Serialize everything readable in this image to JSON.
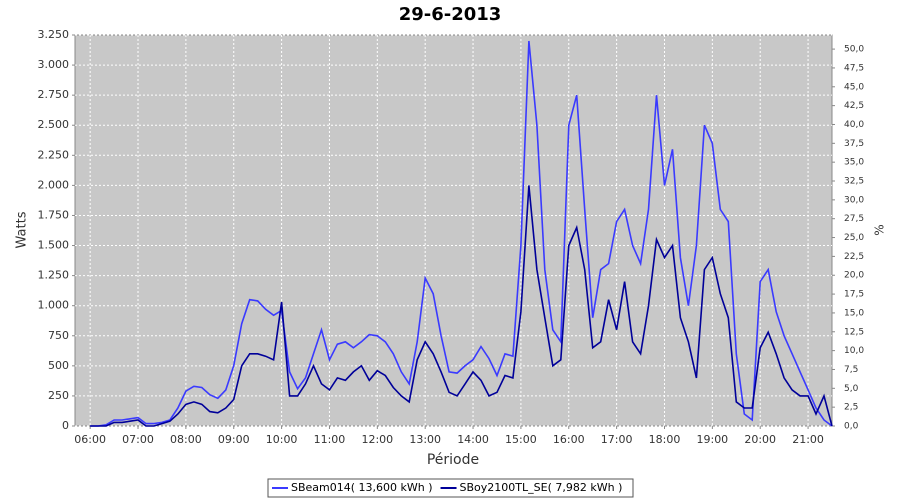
{
  "chart_data": {
    "type": "line",
    "title": "29-6-2013",
    "x_label": "Période",
    "y_label": "Watts",
    "y2_label": "%",
    "x": [
      "06:00",
      "06:10",
      "06:20",
      "06:30",
      "06:40",
      "06:50",
      "07:00",
      "07:10",
      "07:20",
      "07:30",
      "07:40",
      "07:50",
      "08:00",
      "08:10",
      "08:20",
      "08:30",
      "08:40",
      "08:50",
      "09:00",
      "09:10",
      "09:20",
      "09:30",
      "09:40",
      "09:50",
      "10:00",
      "10:10",
      "10:20",
      "10:30",
      "10:40",
      "10:50",
      "11:00",
      "11:10",
      "11:20",
      "11:30",
      "11:40",
      "11:50",
      "12:00",
      "12:10",
      "12:20",
      "12:30",
      "12:40",
      "12:50",
      "13:00",
      "13:10",
      "13:20",
      "13:30",
      "13:40",
      "13:50",
      "14:00",
      "14:10",
      "14:20",
      "14:30",
      "14:40",
      "14:50",
      "15:00",
      "15:10",
      "15:20",
      "15:30",
      "15:40",
      "15:50",
      "16:00",
      "16:10",
      "16:20",
      "16:30",
      "16:40",
      "16:50",
      "17:00",
      "17:10",
      "17:20",
      "17:30",
      "17:40",
      "17:50",
      "18:00",
      "18:10",
      "18:20",
      "18:30",
      "18:40",
      "18:50",
      "19:00",
      "19:10",
      "19:20",
      "19:30",
      "19:40",
      "19:50",
      "20:00",
      "20:10",
      "20:20",
      "20:30",
      "20:40",
      "20:50",
      "21:00",
      "21:10",
      "21:20",
      "21:30"
    ],
    "series": [
      {
        "name": "SBeam014( 13,600 kWh )",
        "color": "#3a3aff",
        "values": [
          0,
          0,
          10,
          50,
          50,
          60,
          70,
          20,
          20,
          30,
          50,
          150,
          290,
          330,
          320,
          260,
          230,
          300,
          500,
          850,
          1050,
          1040,
          970,
          920,
          960,
          450,
          310,
          400,
          600,
          800,
          550,
          680,
          700,
          650,
          700,
          760,
          750,
          700,
          600,
          450,
          350,
          700,
          1230,
          1100,
          750,
          450,
          440,
          500,
          550,
          660,
          560,
          420,
          600,
          580,
          1500,
          3200,
          2500,
          1300,
          800,
          700,
          2500,
          2750,
          1800,
          900,
          1300,
          1350,
          1700,
          1800,
          1500,
          1350,
          1800,
          2750,
          2000,
          2300,
          1400,
          1000,
          1500,
          2500,
          2350,
          1800,
          1700,
          600,
          100,
          50,
          1200,
          1300,
          950,
          750,
          600,
          450,
          300,
          150,
          50,
          0
        ]
      },
      {
        "name": "SBoy2100TL_SE( 7,982 kWh )",
        "color": "#000099",
        "values": [
          0,
          0,
          0,
          30,
          30,
          40,
          50,
          0,
          0,
          20,
          40,
          100,
          180,
          200,
          180,
          120,
          110,
          150,
          220,
          500,
          600,
          600,
          580,
          550,
          1030,
          250,
          250,
          350,
          500,
          350,
          300,
          400,
          380,
          450,
          500,
          380,
          460,
          420,
          320,
          250,
          200,
          550,
          700,
          600,
          450,
          280,
          250,
          350,
          450,
          380,
          250,
          280,
          420,
          400,
          950,
          2000,
          1300,
          900,
          500,
          550,
          1500,
          1650,
          1300,
          650,
          700,
          1050,
          800,
          1200,
          700,
          600,
          1000,
          1550,
          1400,
          1500,
          900,
          700,
          400,
          1300,
          1400,
          1100,
          900,
          200,
          150,
          150,
          650,
          780,
          600,
          400,
          300,
          250,
          250,
          100,
          250,
          0
        ]
      }
    ],
    "xlim": [
      "05:41",
      "21:30"
    ],
    "xticks": [
      "06:00",
      "07:00",
      "08:00",
      "09:00",
      "10:00",
      "11:00",
      "12:00",
      "13:00",
      "14:00",
      "15:00",
      "16:00",
      "17:00",
      "18:00",
      "19:00",
      "20:00",
      "21:00"
    ],
    "ylim": [
      0,
      3250
    ],
    "yticks": [
      0,
      250,
      500,
      750,
      {
        "value": 1000,
        "label": "1.000"
      },
      {
        "value": 1250,
        "label": "1.250"
      },
      {
        "value": 1500,
        "label": "1.500"
      },
      {
        "value": 1750,
        "label": "1.750"
      },
      {
        "value": 2000,
        "label": "2.000"
      },
      {
        "value": 2250,
        "label": "2.250"
      },
      {
        "value": 2500,
        "label": "2.500"
      },
      {
        "value": 2750,
        "label": "2.750"
      },
      {
        "value": 3000,
        "label": "3.000"
      },
      {
        "value": 3250,
        "label": "3.250"
      }
    ],
    "y2lim": [
      0,
      51.87
    ],
    "y2ticks": [
      {
        "value": 0,
        "label": "0,0"
      },
      {
        "value": 2.5,
        "label": "2,5"
      },
      {
        "value": 5,
        "label": "5,0"
      },
      {
        "value": 7.5,
        "label": "7,5"
      },
      {
        "value": 10,
        "label": "10,0"
      },
      {
        "value": 12.5,
        "label": "12,5"
      },
      {
        "value": 15,
        "label": "15,0"
      },
      {
        "value": 17.5,
        "label": "17,5"
      },
      {
        "value": 20,
        "label": "20,0"
      },
      {
        "value": 22.5,
        "label": "22,5"
      },
      {
        "value": 25,
        "label": "25,0"
      },
      {
        "value": 27.5,
        "label": "27,5"
      },
      {
        "value": 30,
        "label": "30,0"
      },
      {
        "value": 32.5,
        "label": "32,5"
      },
      {
        "value": 35,
        "label": "35,0"
      },
      {
        "value": 37.5,
        "label": "37,5"
      },
      {
        "value": 40,
        "label": "40,0"
      },
      {
        "value": 42.5,
        "label": "42,5"
      },
      {
        "value": 45,
        "label": "45,0"
      },
      {
        "value": 47.5,
        "label": "47,5"
      },
      {
        "value": 50,
        "label": "50,0"
      }
    ],
    "grid": true
  }
}
